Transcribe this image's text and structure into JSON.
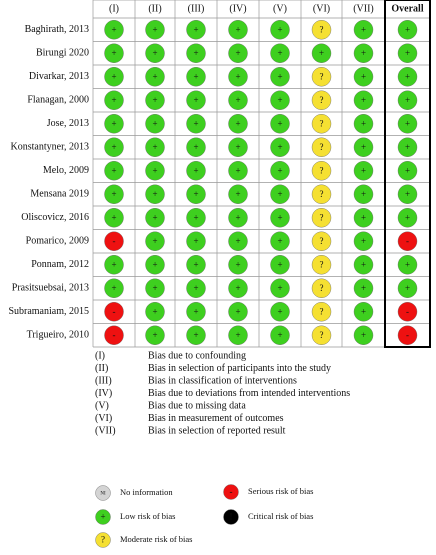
{
  "header": {
    "domains": [
      "(I)",
      "(II)",
      "(III)",
      "(IV)",
      "(V)",
      "(VI)",
      "(VII)"
    ],
    "overall": "Overall"
  },
  "rows": [
    {
      "study": "Baghirath, 2013",
      "judgments": [
        "+",
        "+",
        "+",
        "+",
        "+",
        "?",
        "+"
      ],
      "overall": "+"
    },
    {
      "study": "Birungi 2020",
      "judgments": [
        "+",
        "+",
        "+",
        "+",
        "+",
        "+",
        "+"
      ],
      "overall": "+"
    },
    {
      "study": "Divarkar, 2013",
      "judgments": [
        "+",
        "+",
        "+",
        "+",
        "+",
        "?",
        "+"
      ],
      "overall": "+"
    },
    {
      "study": "Flanagan, 2000",
      "judgments": [
        "+",
        "+",
        "+",
        "+",
        "+",
        "?",
        "+"
      ],
      "overall": "+"
    },
    {
      "study": "Jose, 2013",
      "judgments": [
        "+",
        "+",
        "+",
        "+",
        "+",
        "?",
        "+"
      ],
      "overall": "+"
    },
    {
      "study": "Konstantyner, 2013",
      "judgments": [
        "+",
        "+",
        "+",
        "+",
        "+",
        "?",
        "+"
      ],
      "overall": "+"
    },
    {
      "study": "Melo, 2009",
      "judgments": [
        "+",
        "+",
        "+",
        "+",
        "+",
        "?",
        "+"
      ],
      "overall": "+"
    },
    {
      "study": "Mensana 2019",
      "judgments": [
        "+",
        "+",
        "+",
        "+",
        "+",
        "?",
        "+"
      ],
      "overall": "+"
    },
    {
      "study": "Oliscovicz, 2016",
      "judgments": [
        "+",
        "+",
        "+",
        "+",
        "+",
        "?",
        "+"
      ],
      "overall": "+"
    },
    {
      "study": "Pomarico, 2009",
      "judgments": [
        "-",
        "+",
        "+",
        "+",
        "+",
        "?",
        "+"
      ],
      "overall": "-"
    },
    {
      "study": "Ponnam, 2012",
      "judgments": [
        "+",
        "+",
        "+",
        "+",
        "+",
        "?",
        "+"
      ],
      "overall": "+"
    },
    {
      "study": "Prasitsuebsai, 2013",
      "judgments": [
        "+",
        "+",
        "+",
        "+",
        "+",
        "?",
        "+"
      ],
      "overall": "+"
    },
    {
      "study": "Subramaniam, 2015",
      "judgments": [
        "-",
        "+",
        "+",
        "+",
        "+",
        "?",
        "+"
      ],
      "overall": "-"
    },
    {
      "study": "Trigueiro, 2010",
      "judgments": [
        "-",
        "+",
        "+",
        "+",
        "+",
        "?",
        "+"
      ],
      "overall": "-"
    }
  ],
  "domain_legend": [
    {
      "code": "(I)",
      "text": "Bias due to confounding"
    },
    {
      "code": "(II)",
      "text": "Bias in selection of participants into the study"
    },
    {
      "code": "(III)",
      "text": "Bias in classification of interventions"
    },
    {
      "code": "(IV)",
      "text": "Bias due to deviations from intended interventions"
    },
    {
      "code": "(V)",
      "text": "Bias due to missing data"
    },
    {
      "code": "(VI)",
      "text": "Bias in measurement of outcomes"
    },
    {
      "code": "(VII)",
      "text": "Bias in selection of reported result"
    }
  ],
  "key": [
    {
      "symbol": "NI",
      "label": "No information",
      "color": "#d4d4d4"
    },
    {
      "symbol": "+",
      "label": "Low risk of bias",
      "color": "#3ecf1f"
    },
    {
      "symbol": "?",
      "label": "Moderate risk of bias",
      "color": "#f5e032"
    },
    {
      "symbol": "-",
      "label": "Serious risk of bias",
      "color": "#ee1111"
    },
    {
      "symbol": "!",
      "label": "Critical risk of bias",
      "color": "#000000"
    }
  ]
}
